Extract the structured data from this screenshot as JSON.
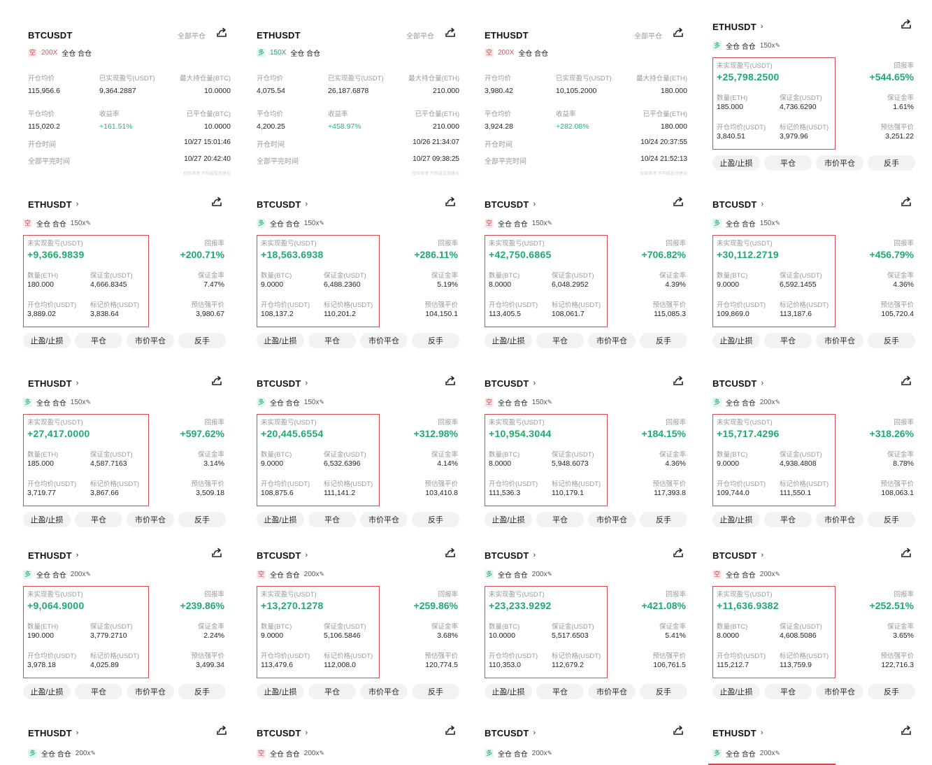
{
  "labels": {
    "closed_all": "全部平仓",
    "mode": "全仓 合仓",
    "long": "多",
    "short": "空",
    "open_avg": "开仓均价",
    "realized_pnl": "已实现盈亏(USDT)",
    "max_hold_prefix": "最大持仓量",
    "close_avg": "平仓均价",
    "yield": "收益率",
    "closed_qty_prefix": "已平仓量",
    "open_time": "开仓时间",
    "close_time": "全部平完时间",
    "unrealized": "未实现盈亏(USDT)",
    "roe": "回报率",
    "qty_prefix": "数量",
    "margin": "保证金(USDT)",
    "margin_ratio": "保证金率",
    "entry": "开仓均价(USDT)",
    "mark": "标记价格(USDT)",
    "liq": "预估强平价",
    "btn_tpsl": "止盈/止损",
    "btn_close": "平仓",
    "btn_market_close": "市价平仓",
    "btn_reverse": "反手",
    "watermark": "仅供参考 不构成投资建议"
  },
  "history_cards": [
    {
      "symbol": "BTCUSDT",
      "side": "short",
      "leverage": "200X",
      "coin": "BTC",
      "open_avg": "115,956.6",
      "realized": "9,364.2887",
      "max_hold": "10.0000",
      "close_avg": "115,020.2",
      "yield": "+161.51%",
      "closed_qty": "10.0000",
      "open_time": "10/27 15:01:46",
      "close_time": "10/27 20:42:40"
    },
    {
      "symbol": "ETHUSDT",
      "side": "long",
      "leverage": "150X",
      "coin": "ETH",
      "open_avg": "4,075.54",
      "realized": "26,187.6878",
      "max_hold": "210.000",
      "close_avg": "4,200.25",
      "yield": "+458.97%",
      "closed_qty": "210.000",
      "open_time": "10/26 21:34:07",
      "close_time": "10/27 09:38:25"
    },
    {
      "symbol": "ETHUSDT",
      "side": "short",
      "leverage": "200X",
      "coin": "ETH",
      "open_avg": "3,980.42",
      "realized": "10,105.2000",
      "max_hold": "180.000",
      "close_avg": "3,924.28",
      "yield": "+282.08%",
      "closed_qty": "180.000",
      "open_time": "10/24 20:37:55",
      "close_time": "10/24 21:52:13"
    }
  ],
  "position_cards": [
    {
      "symbol": "ETHUSDT",
      "side": "long",
      "leverage": "150x",
      "pnl": "+25,798.2500",
      "roe": "+544.65%",
      "coin": "ETH",
      "qty": "185.000",
      "margin": "4,736.6290",
      "mr": "1.61%",
      "entry": "3,840.51",
      "mark": "3,979.96",
      "liq": "3,251.22"
    },
    {
      "symbol": "ETHUSDT",
      "side": "short",
      "leverage": "150x",
      "pnl": "+9,366.9839",
      "roe": "+200.71%",
      "coin": "ETH",
      "qty": "180.000",
      "margin": "4,666.8345",
      "mr": "7.47%",
      "entry": "3,889.02",
      "mark": "3,838.64",
      "liq": "3,980.67"
    },
    {
      "symbol": "BTCUSDT",
      "side": "long",
      "leverage": "150x",
      "pnl": "+18,563.6938",
      "roe": "+286.11%",
      "coin": "BTC",
      "qty": "9.0000",
      "margin": "6,488.2360",
      "mr": "5.19%",
      "entry": "108,137.2",
      "mark": "110,201.2",
      "liq": "104,150.1"
    },
    {
      "symbol": "BTCUSDT",
      "side": "short",
      "leverage": "150x",
      "pnl": "+42,750.6865",
      "roe": "+706.82%",
      "coin": "BTC",
      "qty": "8.0000",
      "margin": "6,048.2952",
      "mr": "4.39%",
      "entry": "113,405.5",
      "mark": "108,061.7",
      "liq": "115,085.3"
    },
    {
      "symbol": "BTCUSDT",
      "side": "long",
      "leverage": "150x",
      "pnl": "+30,112.2719",
      "roe": "+456.79%",
      "coin": "BTC",
      "qty": "9.0000",
      "margin": "6,592.1455",
      "mr": "4.36%",
      "entry": "109,869.0",
      "mark": "113,187.6",
      "liq": "105,720.4"
    },
    {
      "symbol": "ETHUSDT",
      "side": "long",
      "leverage": "150x",
      "pnl": "+27,417.0000",
      "roe": "+597.62%",
      "coin": "ETH",
      "qty": "185.000",
      "margin": "4,587.7163",
      "mr": "3.14%",
      "entry": "3,719.77",
      "mark": "3,867.66",
      "liq": "3,509.18"
    },
    {
      "symbol": "BTCUSDT",
      "side": "long",
      "leverage": "150x",
      "pnl": "+20,445.6554",
      "roe": "+312.98%",
      "coin": "BTC",
      "qty": "9.0000",
      "margin": "6,532.6396",
      "mr": "4.14%",
      "entry": "108,875.6",
      "mark": "111,141.2",
      "liq": "103,410.8"
    },
    {
      "symbol": "BTCUSDT",
      "side": "short",
      "leverage": "150x",
      "pnl": "+10,954.3044",
      "roe": "+184.15%",
      "coin": "BTC",
      "qty": "8.0000",
      "margin": "5,948.6073",
      "mr": "4.36%",
      "entry": "111,536.3",
      "mark": "110,179.1",
      "liq": "117,393.8"
    },
    {
      "symbol": "BTCUSDT",
      "side": "long",
      "leverage": "200x",
      "pnl": "+15,717.4296",
      "roe": "+318.26%",
      "coin": "BTC",
      "qty": "9.0000",
      "margin": "4,938.4808",
      "mr": "8.78%",
      "entry": "109,744.0",
      "mark": "111,550.1",
      "liq": "108,063.1"
    },
    {
      "symbol": "ETHUSDT",
      "side": "long",
      "leverage": "200x",
      "pnl": "+9,064.9000",
      "roe": "+239.86%",
      "coin": "ETH",
      "qty": "190.000",
      "margin": "3,779.2710",
      "mr": "2.24%",
      "entry": "3,978.18",
      "mark": "4,025.89",
      "liq": "3,499.34"
    },
    {
      "symbol": "BTCUSDT",
      "side": "short",
      "leverage": "200x",
      "pnl": "+13,270.1278",
      "roe": "+259.86%",
      "coin": "BTC",
      "qty": "9.0000",
      "margin": "5,106.5846",
      "mr": "3.68%",
      "entry": "113,479.6",
      "mark": "112,008.0",
      "liq": "120,774.5"
    },
    {
      "symbol": "BTCUSDT",
      "side": "long",
      "leverage": "200x",
      "pnl": "+23,233.9292",
      "roe": "+421.08%",
      "coin": "BTC",
      "qty": "10.0000",
      "margin": "5,517.6503",
      "mr": "5.41%",
      "entry": "110,353.0",
      "mark": "112,679.2",
      "liq": "106,761.5"
    },
    {
      "symbol": "BTCUSDT",
      "side": "short",
      "leverage": "200x",
      "pnl": "+11,636.9382",
      "roe": "+252.51%",
      "coin": "BTC",
      "qty": "8.0000",
      "margin": "4,608.5086",
      "mr": "3.65%",
      "entry": "115,212.7",
      "mark": "113,759.9",
      "liq": "122,716.3"
    }
  ],
  "stub_cards": [
    {
      "symbol": "ETHUSDT",
      "side": "long",
      "leverage": "200x"
    },
    {
      "symbol": "BTCUSDT",
      "side": "short",
      "leverage": "200x"
    },
    {
      "symbol": "BTCUSDT",
      "side": "long",
      "leverage": "200x"
    },
    {
      "symbol": "ETHUSDT",
      "side": "long",
      "leverage": "200x"
    }
  ],
  "colors": {
    "green": "#21a96f",
    "red": "#d8343f",
    "frame": "#d9474f"
  }
}
